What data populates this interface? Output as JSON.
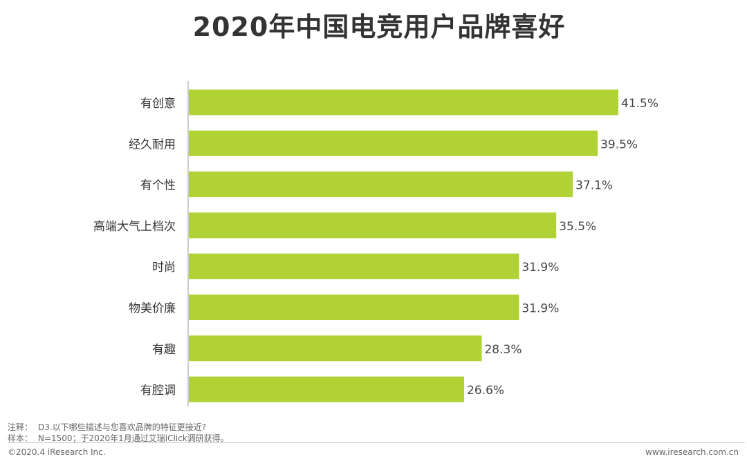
{
  "chart_data": {
    "type": "bar",
    "orientation": "horizontal",
    "title": "2020年中国电竞用户品牌喜好",
    "categories": [
      "有创意",
      "经久耐用",
      "有个性",
      "高端大气上档次",
      "时尚",
      "物美价廉",
      "有趣",
      "有腔调"
    ],
    "values": [
      41.5,
      39.5,
      37.1,
      35.5,
      31.9,
      31.9,
      28.3,
      26.6
    ],
    "value_labels": [
      "41.5%",
      "39.5%",
      "37.1%",
      "35.5%",
      "31.9%",
      "31.9%",
      "28.3%",
      "26.6%"
    ],
    "unit": "%",
    "xlim": [
      0,
      45
    ],
    "grid": false,
    "bar_color": "#b0d234",
    "axis_color": "#999999"
  },
  "notes": {
    "note_label": "注释：",
    "note_text": "D3.以下哪些描述与您喜欢品牌的特征更接近?",
    "sample_label": "样本：",
    "sample_text": "N=1500；于2020年1月通过艾瑞iClick调研获得。"
  },
  "footer": {
    "copyright": "©2020.4 iResearch Inc.",
    "website": "www.iresearch.com.cn"
  }
}
